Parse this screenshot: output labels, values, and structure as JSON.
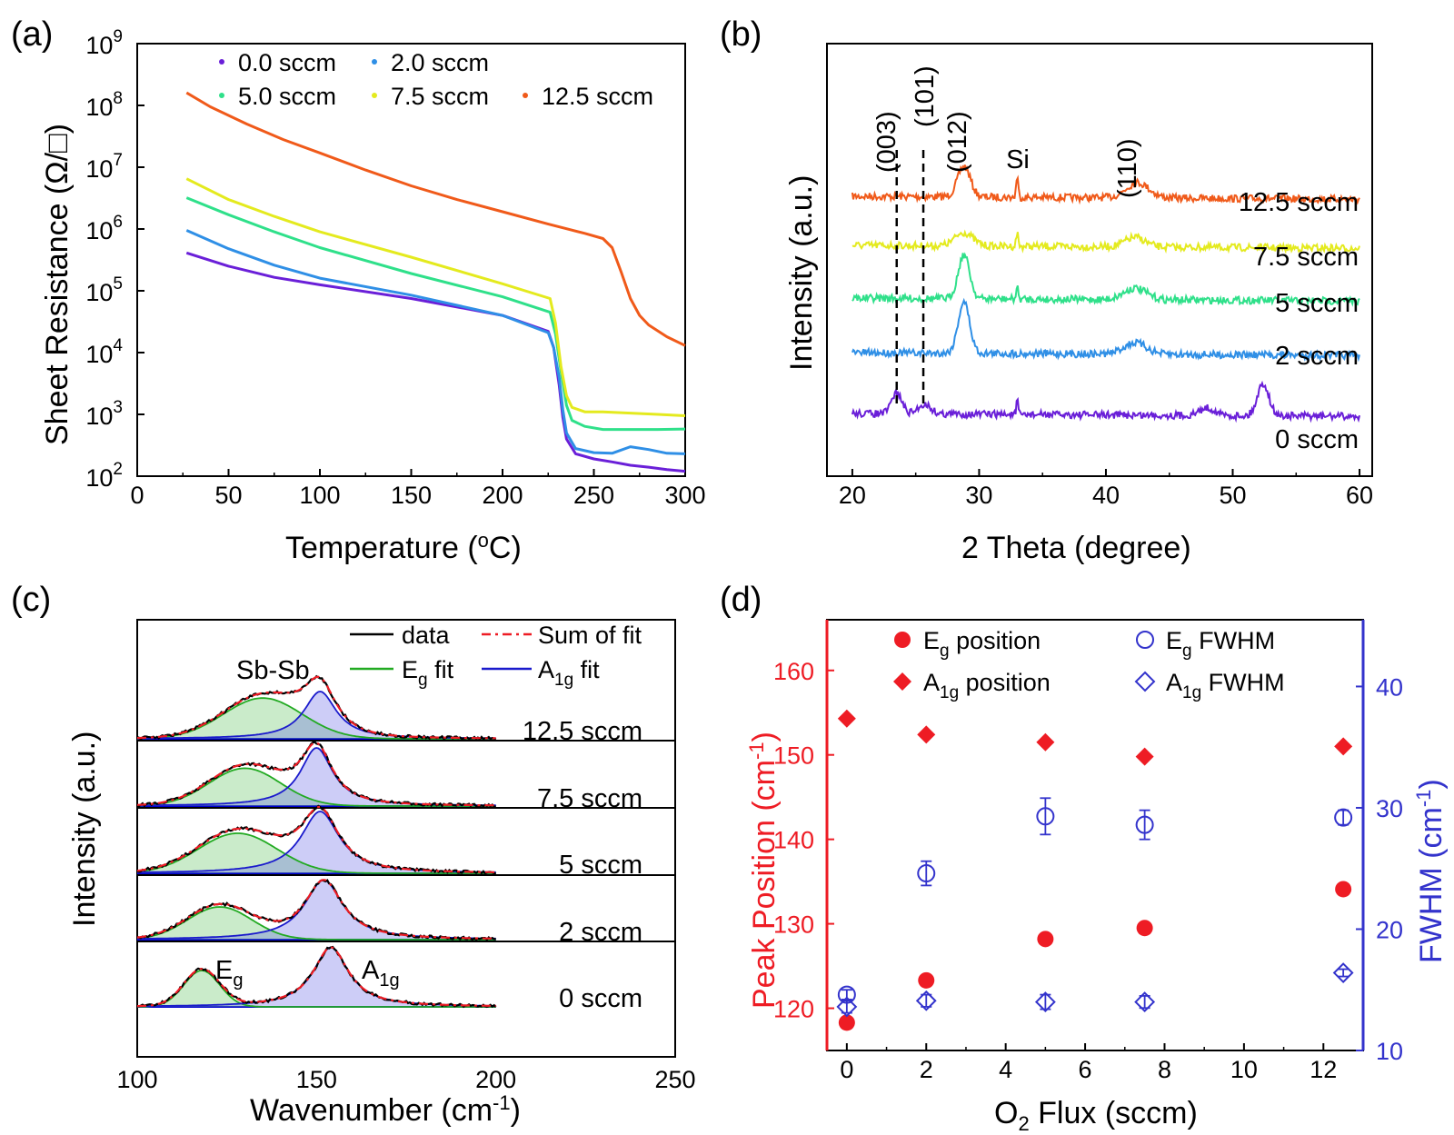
{
  "panels": {
    "a": {
      "label": "(a)"
    },
    "b": {
      "label": "(b)"
    },
    "c": {
      "label": "(c)"
    },
    "d": {
      "label": "(d)"
    }
  },
  "chart_data": [
    {
      "panel": "(a)",
      "type": "line",
      "xlabel": "Temperature (oC)",
      "ylabel": "Sheet Resistance (Ω/□)",
      "xlim": [
        0,
        300
      ],
      "ylim": [
        100,
        1000000000
      ],
      "yscale": "log",
      "xticks": [
        "0",
        "50",
        "100",
        "150",
        "200",
        "250",
        "300"
      ],
      "yticks": [
        "10",
        "10",
        "10",
        "10",
        "10",
        "10",
        "10",
        "10"
      ],
      "ytick_exps": [
        "2",
        "3",
        "4",
        "5",
        "6",
        "7",
        "8",
        "9"
      ],
      "legend": "top",
      "series": [
        {
          "name": "0.0 sccm",
          "color": "#6a1fd8",
          "x": [
            27,
            50,
            75,
            100,
            150,
            200,
            225,
            228,
            231,
            233,
            235,
            240,
            250,
            260,
            270,
            280,
            290,
            300
          ],
          "y": [
            410000,
            250000,
            165000,
            125000,
            75000,
            40000,
            22000,
            12000,
            3000,
            900,
            400,
            230,
            190,
            170,
            150,
            140,
            128,
            120
          ]
        },
        {
          "name": "2.0 sccm",
          "color": "#2f8fe6",
          "x": [
            27,
            50,
            75,
            100,
            150,
            200,
            225,
            228,
            231,
            233,
            235,
            240,
            250,
            260,
            270,
            280,
            290,
            300
          ],
          "y": [
            950000,
            480000,
            260000,
            160000,
            85000,
            40000,
            21000,
            12000,
            4000,
            1200,
            500,
            280,
            240,
            235,
            300,
            270,
            235,
            230
          ]
        },
        {
          "name": "5.0 sccm",
          "color": "#2fe08a",
          "x": [
            27,
            50,
            75,
            100,
            150,
            200,
            226,
            229,
            232,
            235,
            238,
            245,
            255,
            270,
            285,
            300
          ],
          "y": [
            3200000,
            1700000,
            900000,
            500000,
            190000,
            80000,
            45000,
            20000,
            5000,
            1400,
            800,
            640,
            570,
            570,
            570,
            580
          ]
        },
        {
          "name": "7.5 sccm",
          "color": "#e4ea1e",
          "x": [
            27,
            50,
            75,
            100,
            150,
            200,
            226,
            229,
            232,
            235,
            238,
            245,
            255,
            270,
            285,
            300
          ],
          "y": [
            6500000,
            3000000,
            1600000,
            900000,
            350000,
            130000,
            75000,
            30000,
            6000,
            2000,
            1300,
            1100,
            1100,
            1050,
            1000,
            950
          ]
        },
        {
          "name": "12.5 sccm",
          "color": "#f05a1a",
          "x": [
            27,
            40,
            60,
            80,
            100,
            125,
            150,
            175,
            200,
            225,
            245,
            255,
            260,
            265,
            270,
            275,
            280,
            290,
            300
          ],
          "y": [
            160000000,
            95000000,
            50000000,
            28000000,
            17000000,
            9000000,
            5000000,
            3000000,
            1900000,
            1200000,
            850000,
            700000,
            500000,
            200000,
            75000,
            40000,
            28000,
            18000,
            13000
          ]
        }
      ]
    },
    {
      "panel": "(b)",
      "type": "line",
      "xlabel": "2 Theta (degree)",
      "ylabel": "Intensity (a.u.)",
      "xlim": [
        18,
        61
      ],
      "xticks": [
        "20",
        "30",
        "40",
        "50",
        "60"
      ],
      "annotations": [
        "(003)",
        "(101)",
        "(012)",
        "Si",
        "(110)"
      ],
      "annotation_x": [
        23.5,
        25.6,
        28.8,
        33.0,
        42.5
      ],
      "series": [
        {
          "name": "12.5 sccm",
          "color": "#f05a1a",
          "offset": 4,
          "peaks": [
            [
              28.8,
              0.8,
              0.5
            ],
            [
              33.0,
              0.55,
              0.08
            ],
            [
              42.5,
              0.4,
              0.9
            ]
          ]
        },
        {
          "name": "7.5 sccm",
          "color": "#e4ea1e",
          "offset": 3,
          "peaks": [
            [
              28.8,
              0.35,
              0.7
            ],
            [
              33.0,
              0.35,
              0.08
            ],
            [
              42.3,
              0.25,
              0.8
            ]
          ]
        },
        {
          "name": "5 sccm",
          "color": "#2fe08a",
          "offset": 2,
          "peaks": [
            [
              28.8,
              1.15,
              0.45
            ],
            [
              33.0,
              0.3,
              0.08
            ],
            [
              42.3,
              0.3,
              0.9
            ]
          ]
        },
        {
          "name": "2 sccm",
          "color": "#2f8fe6",
          "offset": 1,
          "peaks": [
            [
              28.8,
              1.35,
              0.45
            ],
            [
              42.3,
              0.3,
              0.9
            ]
          ]
        },
        {
          "name": "0 sccm",
          "color": "#6a1fd8",
          "offset": 0,
          "peaks": [
            [
              23.5,
              0.55,
              0.4
            ],
            [
              25.7,
              0.25,
              0.5
            ],
            [
              33.0,
              0.4,
              0.06
            ],
            [
              48.0,
              0.2,
              0.6
            ],
            [
              52.4,
              0.85,
              0.45
            ]
          ]
        }
      ]
    },
    {
      "panel": "(c)",
      "type": "line",
      "xlabel": "Wavenumber (cm-1)",
      "ylabel": "Intensity (a.u.)",
      "xlim": [
        100,
        250
      ],
      "xticks": [
        "100",
        "150",
        "200",
        "250"
      ],
      "legend": "top-right",
      "legend_entries": [
        "data",
        "Sum of fit",
        "Eg fit",
        "A1g fit"
      ],
      "annotations": [
        "Sb-Sb",
        "Eg",
        "A1g"
      ],
      "series": [
        {
          "name": "12.5 sccm",
          "eg": [
            135,
            0.56,
            11
          ],
          "a1g": [
            151,
            0.65,
            5.5
          ]
        },
        {
          "name": "7.5 sccm",
          "eg": [
            130,
            0.52,
            10
          ],
          "a1g": [
            150,
            0.8,
            5.5
          ]
        },
        {
          "name": "5 sccm",
          "eg": [
            128,
            0.55,
            11
          ],
          "a1g": [
            151,
            0.85,
            6.5
          ]
        },
        {
          "name": "2 sccm",
          "eg": [
            123,
            0.45,
            9
          ],
          "a1g": [
            152,
            0.82,
            6.5
          ]
        },
        {
          "name": "0 sccm",
          "eg": [
            118,
            0.5,
            5
          ],
          "a1g": [
            154,
            0.82,
            6
          ]
        }
      ]
    },
    {
      "panel": "(d)",
      "type": "scatter",
      "xlabel": "O2 Flux (sccm)",
      "ylabel_left": "Peak Position (cm-1)",
      "ylabel_right": "FWHM (cm-1)",
      "xlim": [
        -0.5,
        13
      ],
      "ylim_left": [
        115,
        166
      ],
      "ylim_right": [
        10,
        45.5
      ],
      "xticks": [
        "0",
        "2",
        "4",
        "6",
        "8",
        "10",
        "12"
      ],
      "yticks_left": [
        "120",
        "130",
        "140",
        "150",
        "160"
      ],
      "yticks_right": [
        "10",
        "20",
        "30",
        "40"
      ],
      "legend": "top",
      "series": [
        {
          "name": "Eg position",
          "axis": "left",
          "marker": "filled-circle",
          "color": "#ee1c24",
          "x": [
            0,
            2,
            5,
            7.5,
            12.5
          ],
          "y": [
            118.3,
            123.3,
            128.2,
            129.5,
            134.1
          ]
        },
        {
          "name": "A1g position",
          "axis": "left",
          "marker": "filled-diamond",
          "color": "#ee1c24",
          "x": [
            0,
            2,
            5,
            7.5,
            12.5
          ],
          "y": [
            154.3,
            152.4,
            151.5,
            149.8,
            151.0
          ]
        },
        {
          "name": "Eg FWHM",
          "axis": "right",
          "marker": "open-circle",
          "color": "#3333cc",
          "x": [
            0,
            2,
            5,
            7.5,
            12.5
          ],
          "y": [
            14.6,
            24.6,
            29.3,
            28.6,
            29.2
          ],
          "err": [
            0.4,
            1.0,
            1.5,
            1.2,
            0.6
          ]
        },
        {
          "name": "A1g FWHM",
          "axis": "right",
          "marker": "open-diamond",
          "color": "#3333cc",
          "x": [
            0,
            2,
            5,
            7.5,
            12.5
          ],
          "y": [
            13.6,
            14.1,
            14.0,
            14.0,
            16.4
          ],
          "err": [
            0.5,
            0.5,
            0.6,
            0.5,
            0.3
          ]
        }
      ]
    }
  ],
  "texts": {
    "a_xlabel": "Temperature (",
    "a_xlabel_sup": "o",
    "a_xlabel_end": "C)",
    "a_ylabel": "Sheet Resistance (Ω/□)",
    "b_xlabel": "2 Theta (degree)",
    "b_ylabel": "Intensity (a.u.)",
    "c_xlabel": "Wavenumber (cm",
    "c_xlabel_sup": "-1",
    "c_xlabel_end": ")",
    "c_ylabel": "Intensity (a.u.)",
    "c_sbsb": "Sb-Sb",
    "c_eg_base": "E",
    "c_eg_sub": "g",
    "c_a1g_base": "A",
    "c_a1g_sub": "1g",
    "c_leg_data": "data",
    "c_leg_sum": "Sum of fit",
    "c_leg_eg": "fit",
    "c_leg_a1g": "fit",
    "d_xlabel": "O",
    "d_xlabel_sub": "2",
    "d_xlabel_end": " Flux (sccm)",
    "d_ylabel_left": "Peak Position (cm",
    "d_ylabel_left_sup": "-1",
    "d_ylabel_left_end": ")",
    "d_ylabel_right": "FWHM (cm",
    "d_ylabel_right_sup": "-1",
    "d_ylabel_right_end": ")",
    "d_leg_pos": "position",
    "d_leg_fwhm": "FWHM"
  }
}
